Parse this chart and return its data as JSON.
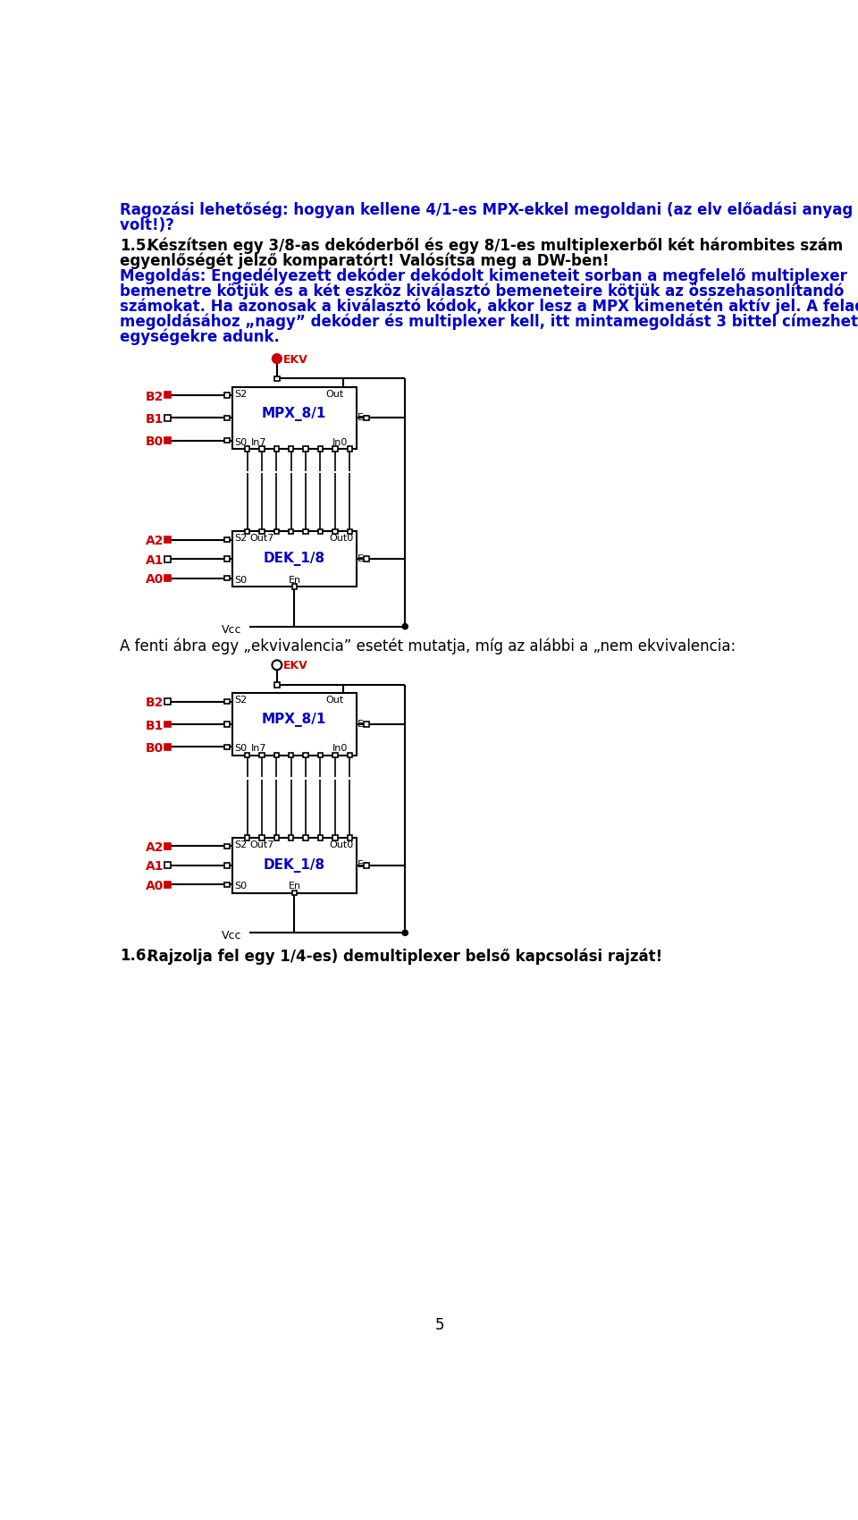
{
  "bg_color": "#ffffff",
  "text_color_blue": "#0000cc",
  "text_color_black": "#000000",
  "text_color_red": "#cc0000",
  "para1_line1": "Ragozási lehetőség: hogyan kellene 4/1-es MPX-ekkel megoldani (az elv előadási anyag",
  "para1_line2": "volt!)? ",
  "para2_bold": "1.5.",
  "para2_rest": " Készítsen egy 3/8-as dekóderből és egy 8/1-es multiplexerből két hárombites szám",
  "para2_line2": "egyenlőségét jelző komparatórt! Valósítsa meg a DW-ben!",
  "para3_l1": "Megoldás: Engedélyezett dekóder dekódolt kimeneteit sorban a megfelelő multiplexer",
  "para3_l2": "bemenetre kötjük és a két eszköz kiválasztó bemeneteire kötjük az összehasonlítandó",
  "para3_l3": "számokat. Ha azonosak a kiválasztó kódok, akkor lesz a MPX kimenetén aktív jel. A feladat",
  "para3_l4": "megoldásához „nagyˮ dekóder és multiplexer kell, itt mintamegoldást 3 bittel címezhető",
  "para3_l5": "egységekre adunk.",
  "para_equiv": "A fenti ábra egy „ekvivalencia” esetét mutatja, míg az alábbi a „nem ekvivalencia:",
  "para4_bold": "1.6.",
  "para4_rest": " Rajzolja fel egy 1/4-es) demultiplexer belső kapcsolási rajzát!",
  "page_num": "5"
}
